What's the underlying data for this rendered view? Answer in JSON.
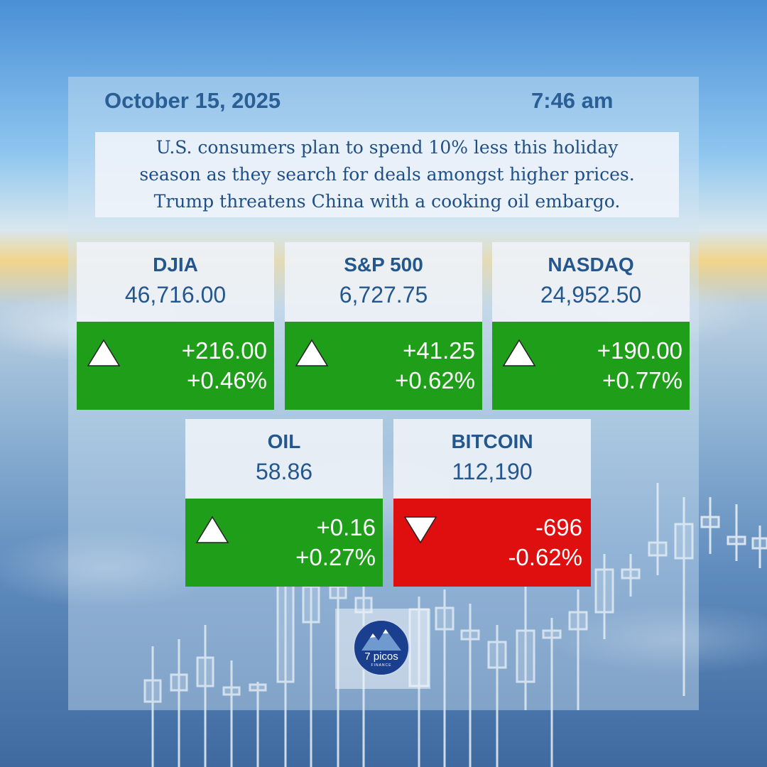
{
  "header": {
    "date": "October 15, 2025",
    "time": "7:46 am"
  },
  "news": {
    "lines": [
      "U.S. consumers plan to spend 10% less this holiday",
      "season as they search for deals amongst higher prices.",
      "Trump threatens China with a cooking oil embargo."
    ]
  },
  "markets": [
    {
      "name": "DJIA",
      "value": "46,716.00",
      "change": "+216.00",
      "percent": "+0.46%",
      "direction": "up"
    },
    {
      "name": "S&P 500",
      "value": "6,727.75",
      "change": "+41.25",
      "percent": "+0.62%",
      "direction": "up"
    },
    {
      "name": "NASDAQ",
      "value": "24,952.50",
      "change": "+190.00",
      "percent": "+0.77%",
      "direction": "up"
    },
    {
      "name": "OIL",
      "value": "58.86",
      "change": "+0.16",
      "percent": "+0.27%",
      "direction": "up"
    },
    {
      "name": "BITCOIN",
      "value": "112,190",
      "change": "-696",
      "percent": "-0.62%",
      "direction": "down"
    }
  ],
  "colors": {
    "up": "#1f9e1a",
    "down": "#df0f0f",
    "text_blue": "#2a5f95"
  },
  "logo": {
    "name": "7 picos",
    "sub": "FINANCE",
    "icon": "mountain-logo-icon"
  }
}
